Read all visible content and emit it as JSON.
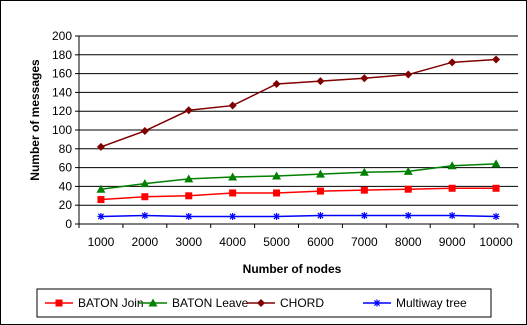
{
  "chart_data": {
    "type": "line",
    "title": "",
    "xlabel": "Number of nodes",
    "ylabel": "Number of messages",
    "categories": [
      "1000",
      "2000",
      "3000",
      "4000",
      "5000",
      "6000",
      "7000",
      "8000",
      "9000",
      "10000"
    ],
    "ylim": [
      0,
      200
    ],
    "yticks": [
      "0",
      "20",
      "40",
      "60",
      "80",
      "100",
      "120",
      "140",
      "160",
      "180",
      "200"
    ],
    "grid": true,
    "legend_position": "bottom",
    "series": [
      {
        "name": "BATON Join",
        "color": "#ff0000",
        "marker": "square",
        "values": [
          26,
          29,
          30,
          33,
          33,
          35,
          36,
          37,
          38,
          38
        ]
      },
      {
        "name": "BATON Leave",
        "color": "#008000",
        "marker": "triangle",
        "values": [
          37,
          43,
          48,
          50,
          51,
          53,
          55,
          56,
          62,
          64
        ]
      },
      {
        "name": "CHORD",
        "color": "#800000",
        "marker": "diamond",
        "values": [
          82,
          99,
          121,
          126,
          149,
          152,
          155,
          159,
          172,
          175
        ]
      },
      {
        "name": "Multiway tree",
        "color": "#0000ff",
        "marker": "star",
        "values": [
          8,
          9,
          8,
          8,
          8,
          9,
          9,
          9,
          9,
          8
        ]
      }
    ]
  }
}
